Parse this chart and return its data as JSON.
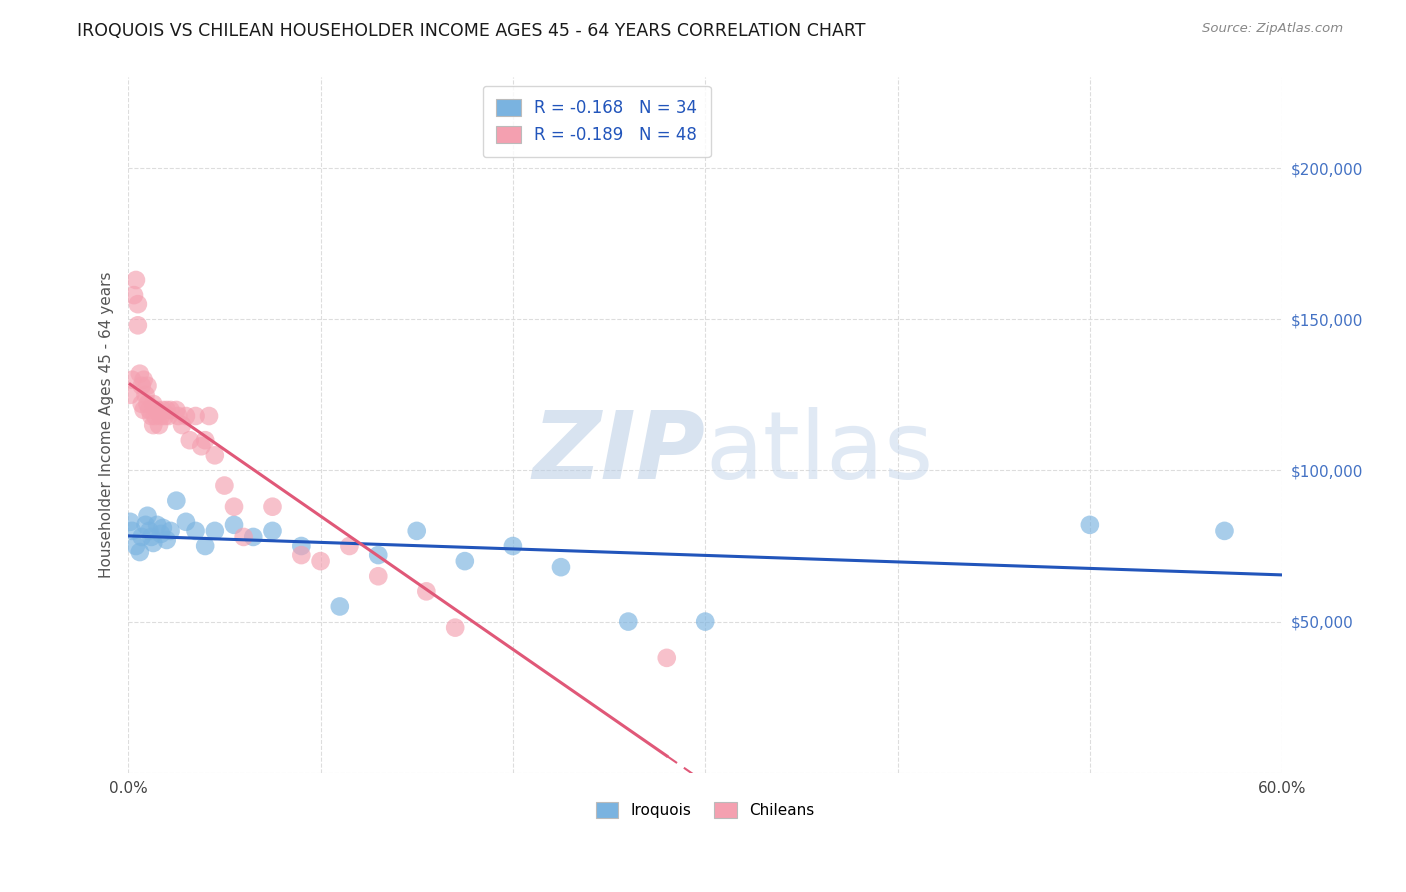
{
  "title": "IROQUOIS VS CHILEAN HOUSEHOLDER INCOME AGES 45 - 64 YEARS CORRELATION CHART",
  "source": "Source: ZipAtlas.com",
  "ylabel": "Householder Income Ages 45 - 64 years",
  "xlim": [
    0.0,
    0.6
  ],
  "ylim": [
    0,
    230000
  ],
  "yticks": [
    0,
    50000,
    100000,
    150000,
    200000
  ],
  "ytick_labels": [
    "",
    "$50,000",
    "$100,000",
    "$150,000",
    "$200,000"
  ],
  "xticks": [
    0.0,
    0.1,
    0.2,
    0.3,
    0.4,
    0.5,
    0.6
  ],
  "xtick_labels": [
    "0.0%",
    "",
    "",
    "",
    "",
    "",
    "60.0%"
  ],
  "iroquois_color": "#7ab3e0",
  "chilean_color": "#f4a0b0",
  "iroquois_line_color": "#2255bb",
  "chilean_line_color": "#e05878",
  "iroquois_R": -0.168,
  "iroquois_N": 34,
  "chilean_R": -0.189,
  "chilean_N": 48,
  "legend_label_iroquois": "Iroquois",
  "legend_label_chilean": "Chileans",
  "iroquois_x": [
    0.001,
    0.002,
    0.004,
    0.006,
    0.007,
    0.009,
    0.01,
    0.011,
    0.012,
    0.013,
    0.015,
    0.017,
    0.018,
    0.02,
    0.022,
    0.025,
    0.03,
    0.035,
    0.04,
    0.045,
    0.055,
    0.065,
    0.075,
    0.09,
    0.11,
    0.13,
    0.15,
    0.175,
    0.2,
    0.225,
    0.26,
    0.3,
    0.5,
    0.57
  ],
  "iroquois_y": [
    83000,
    80000,
    75000,
    73000,
    78000,
    82000,
    85000,
    80000,
    78000,
    76000,
    82000,
    79000,
    81000,
    77000,
    80000,
    90000,
    83000,
    80000,
    75000,
    80000,
    82000,
    78000,
    80000,
    75000,
    55000,
    72000,
    80000,
    70000,
    75000,
    68000,
    50000,
    50000,
    82000,
    80000
  ],
  "chilean_x": [
    0.001,
    0.002,
    0.003,
    0.004,
    0.005,
    0.005,
    0.006,
    0.007,
    0.007,
    0.008,
    0.008,
    0.009,
    0.01,
    0.01,
    0.011,
    0.012,
    0.013,
    0.013,
    0.014,
    0.015,
    0.016,
    0.017,
    0.018,
    0.019,
    0.02,
    0.021,
    0.022,
    0.025,
    0.026,
    0.028,
    0.03,
    0.032,
    0.035,
    0.038,
    0.04,
    0.042,
    0.045,
    0.05,
    0.055,
    0.06,
    0.075,
    0.09,
    0.1,
    0.115,
    0.13,
    0.155,
    0.17,
    0.28
  ],
  "chilean_y": [
    125000,
    130000,
    158000,
    163000,
    155000,
    148000,
    132000,
    128000,
    122000,
    130000,
    120000,
    125000,
    128000,
    122000,
    120000,
    118000,
    122000,
    115000,
    118000,
    120000,
    115000,
    118000,
    120000,
    118000,
    120000,
    118000,
    120000,
    120000,
    118000,
    115000,
    118000,
    110000,
    118000,
    108000,
    110000,
    118000,
    105000,
    95000,
    88000,
    78000,
    88000,
    72000,
    70000,
    75000,
    65000,
    60000,
    48000,
    38000
  ]
}
